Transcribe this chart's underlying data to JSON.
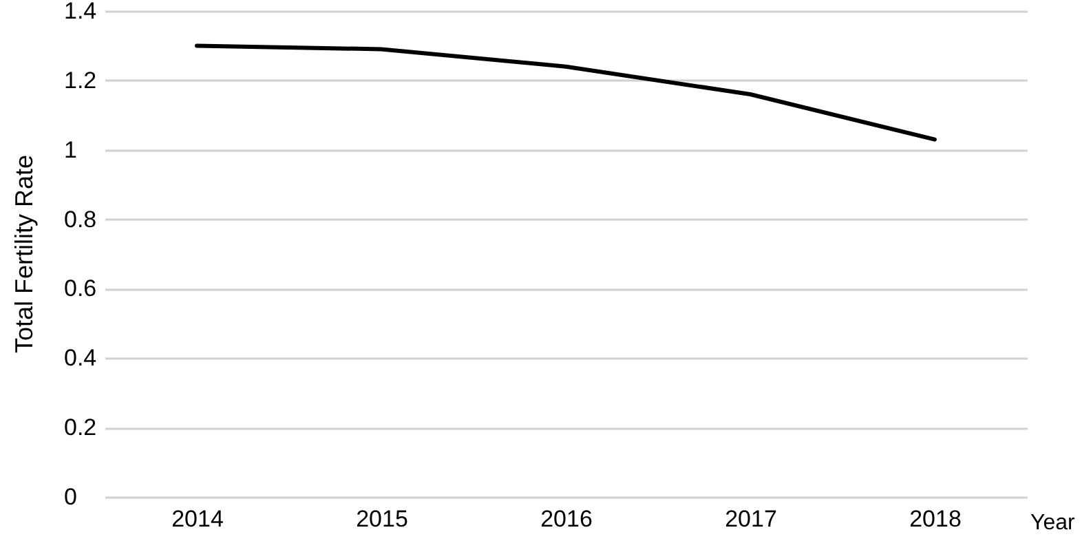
{
  "chart_data": {
    "type": "line",
    "xlabel": "Year",
    "ylabel": "Total Fertility Rate",
    "categories": [
      "2014",
      "2015",
      "2016",
      "2017",
      "2018"
    ],
    "series": [
      {
        "color": "#000000",
        "values": [
          1.3,
          1.29,
          1.24,
          1.16,
          1.03
        ]
      }
    ],
    "ylim": [
      0,
      1.4
    ],
    "yticks": [
      0,
      0.2,
      0.4,
      0.6,
      0.8,
      1,
      1.2,
      1.4
    ],
    "grid": "y",
    "marker": "none",
    "line_style": "solid"
  }
}
